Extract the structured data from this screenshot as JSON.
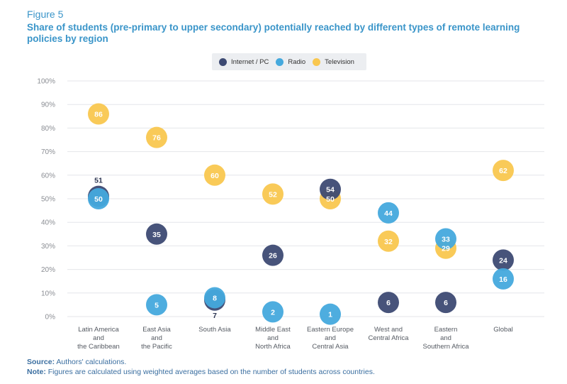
{
  "figure_label": "Figure 5",
  "title": "Share of students (pre-primary to upper secondary) potentially reached by different types of remote learning policies by region",
  "legend": [
    {
      "label": "Internet / PC",
      "color": "#3d4a73"
    },
    {
      "label": "Radio",
      "color": "#45a9dd"
    },
    {
      "label": "Television",
      "color": "#f9c74f"
    }
  ],
  "source_label": "Source:",
  "source_text": " Authors' calculations.",
  "note_label": "Note:",
  "note_text": " Figures are calculated using weighted averages based on the number of students across countries.",
  "chart_data": {
    "type": "scatter",
    "categories": [
      [
        "Latin America",
        "and",
        "the Caribbean"
      ],
      [
        "East Asia",
        "and",
        "the Pacific"
      ],
      [
        "South Asia"
      ],
      [
        "Middle East",
        "and",
        "North Africa"
      ],
      [
        "Eastern Europe",
        "and",
        "Central Asia"
      ],
      [
        "West and",
        "Central Africa"
      ],
      [
        "Eastern",
        "and",
        "Southern Africa"
      ],
      [
        "Global"
      ]
    ],
    "series": [
      {
        "name": "Internet / PC",
        "color": "#3d4a73",
        "values": [
          51,
          35,
          7,
          26,
          54,
          6,
          6,
          24
        ]
      },
      {
        "name": "Radio",
        "color": "#45a9dd",
        "values": [
          50,
          5,
          8,
          2,
          1,
          44,
          33,
          16
        ]
      },
      {
        "name": "Television",
        "color": "#f9c74f",
        "values": [
          86,
          76,
          60,
          52,
          50,
          32,
          29,
          62
        ]
      }
    ],
    "y_ticks": [
      "0%",
      "10%",
      "20%",
      "30%",
      "40%",
      "50%",
      "60%",
      "70%",
      "80%",
      "90%",
      "100%"
    ],
    "ylim": [
      0,
      100
    ],
    "grid": true,
    "legend_position": "top"
  }
}
